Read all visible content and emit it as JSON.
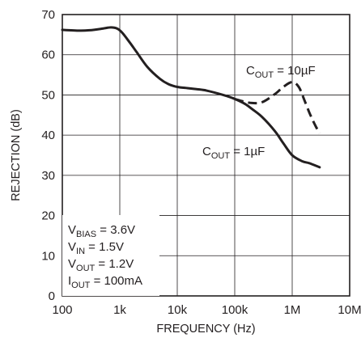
{
  "chart_data": {
    "type": "line",
    "xlabel": "FREQUENCY (Hz)",
    "ylabel": "REJECTION (dB)",
    "xscale": "log",
    "xlim": [
      100,
      10000000
    ],
    "ylim": [
      0,
      70
    ],
    "grid": true,
    "x_ticks": [
      100,
      1000,
      10000,
      100000,
      1000000,
      10000000
    ],
    "x_tick_labels": [
      "100",
      "1k",
      "10k",
      "100k",
      "1M",
      "10M"
    ],
    "y_ticks": [
      0,
      10,
      20,
      30,
      40,
      50,
      60,
      70
    ],
    "y_tick_labels": [
      "0",
      "10",
      "20",
      "30",
      "40",
      "50",
      "60",
      "70"
    ],
    "series": [
      {
        "name": "COUT = 1µF",
        "style": "solid",
        "x": [
          100,
          200,
          300,
          500,
          700,
          900,
          1100,
          1500,
          2000,
          3000,
          5000,
          7000,
          10000,
          15000,
          20000,
          30000,
          50000,
          70000,
          100000,
          150000,
          200000,
          300000,
          500000,
          700000,
          1000000,
          1500000,
          2000000,
          3000000
        ],
        "y": [
          66.2,
          66.0,
          66.1,
          66.5,
          66.8,
          66.5,
          65.5,
          63.0,
          60.5,
          57.0,
          54.0,
          52.7,
          52.0,
          51.7,
          51.5,
          51.2,
          50.4,
          49.8,
          49.0,
          47.8,
          46.5,
          44.5,
          41.0,
          38.0,
          35.0,
          33.5,
          33.0,
          32.0
        ]
      },
      {
        "name": "COUT = 10µF",
        "style": "dashed",
        "x": [
          100000,
          150000,
          200000,
          300000,
          500000,
          700000,
          1000000,
          1300000,
          1600000,
          2000000,
          2500000,
          3000000
        ],
        "y": [
          49.0,
          48.3,
          48.0,
          48.2,
          50.2,
          52.0,
          53.2,
          52.0,
          49.0,
          45.5,
          42.5,
          40.5
        ]
      }
    ]
  },
  "labels": {
    "c10_main": "C",
    "c10_sub": "OUT",
    "c10_rest": " = 10µF",
    "c1_main": "C",
    "c1_sub": "OUT",
    "c1_rest": " = 1µF"
  },
  "conditions": [
    {
      "main": "V",
      "sub": "BIAS",
      "rest": " = 3.6V"
    },
    {
      "main": "V",
      "sub": "IN",
      "rest": " = 1.5V"
    },
    {
      "main": "V",
      "sub": "OUT",
      "rest": " = 1.2V"
    },
    {
      "main": "I",
      "sub": "OUT",
      "rest": " = 100mA"
    }
  ]
}
